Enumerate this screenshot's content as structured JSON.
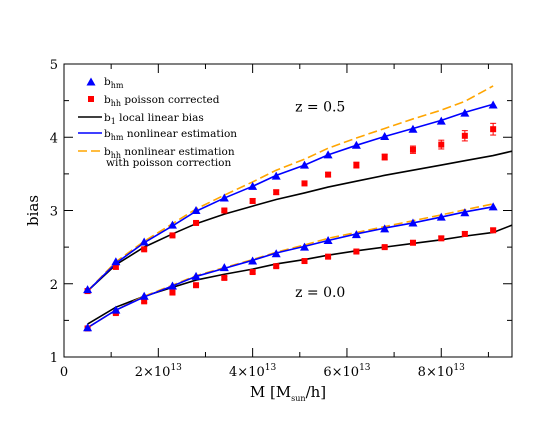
{
  "chart_data": {
    "type": "line",
    "title": "",
    "xlabel": "M [M_sun/h]",
    "ylabel": "bias",
    "xlim": [
      0,
      95000000000000.0
    ],
    "ylim": [
      1,
      5
    ],
    "grid": false,
    "legend_position": "top-left",
    "x_ticks": [
      {
        "value": 0,
        "base": "0",
        "exp": ""
      },
      {
        "value": 20000000000000.0,
        "base": "2×10",
        "exp": "13"
      },
      {
        "value": 40000000000000.0,
        "base": "4×10",
        "exp": "13"
      },
      {
        "value": 60000000000000.0,
        "base": "6×10",
        "exp": "13"
      },
      {
        "value": 80000000000000.0,
        "base": "8×10",
        "exp": "13"
      }
    ],
    "y_ticks": [
      {
        "value": 1,
        "label": "1"
      },
      {
        "value": 2,
        "label": "2"
      },
      {
        "value": 3,
        "label": "3"
      },
      {
        "value": 4,
        "label": "4"
      },
      {
        "value": 5,
        "label": "5"
      }
    ],
    "annotations": [
      {
        "text": "z = 0.5",
        "x": 49000000000000.0,
        "y": 4.35
      },
      {
        "text": "z = 0.0",
        "x": 49000000000000.0,
        "y": 1.82
      }
    ],
    "legend": [
      {
        "id": "bhm",
        "main": "b",
        "sub": "hm",
        "rest": "",
        "rest2": ""
      },
      {
        "id": "bhh",
        "main": "b",
        "sub": "hh",
        "rest": " poisson corrected",
        "rest2": ""
      },
      {
        "id": "b1",
        "main": "b",
        "sub": "1",
        "rest": " local linear bias",
        "rest2": ""
      },
      {
        "id": "bhm_nl",
        "main": "b",
        "sub": "hm",
        "rest": " nonlinear estimation",
        "rest2": ""
      },
      {
        "id": "bhh_nl",
        "main": "b",
        "sub": "hh",
        "rest": " nonlinear estimation",
        "rest2": "with poisson correction"
      }
    ],
    "colors": {
      "bhm": "#0000ff",
      "bhh": "#ff0000",
      "b1": "#000000",
      "bhm_nl": "#0000ff",
      "bhh_nl": "#ffa500"
    },
    "series_groups": [
      {
        "redshift": "z = 0.5",
        "x": [
          5000000000000.0,
          11000000000000.0,
          17000000000000.0,
          23000000000000.0,
          28000000000000.0,
          34000000000000.0,
          40000000000000.0,
          45000000000000.0,
          51000000000000.0,
          56000000000000.0,
          62000000000000.0,
          68000000000000.0,
          74000000000000.0,
          80000000000000.0,
          85000000000000.0,
          91000000000000.0
        ],
        "bhm": [
          1.92,
          2.3,
          2.57,
          2.8,
          3.0,
          3.17,
          3.33,
          3.47,
          3.62,
          3.76,
          3.89,
          4.01,
          4.11,
          4.22,
          4.33,
          4.44
        ],
        "bhm_err": [
          0.02,
          0.02,
          0.02,
          0.02,
          0.02,
          0.02,
          0.02,
          0.02,
          0.02,
          0.02,
          0.02,
          0.02,
          0.02,
          0.03,
          0.03,
          0.04
        ],
        "bhh": [
          1.9,
          2.23,
          2.47,
          2.66,
          2.83,
          3.0,
          3.13,
          3.25,
          3.37,
          3.49,
          3.62,
          3.73,
          3.83,
          3.9,
          4.02,
          4.11
        ],
        "bhh_err": [
          0.03,
          0.03,
          0.02,
          0.02,
          0.02,
          0.02,
          0.03,
          0.03,
          0.03,
          0.03,
          0.04,
          0.04,
          0.05,
          0.06,
          0.07,
          0.08
        ],
        "b1_x": [
          5000000000000.0,
          11000000000000.0,
          17000000000000.0,
          23000000000000.0,
          28000000000000.0,
          34000000000000.0,
          40000000000000.0,
          45000000000000.0,
          51000000000000.0,
          56000000000000.0,
          62000000000000.0,
          68000000000000.0,
          74000000000000.0,
          80000000000000.0,
          85000000000000.0,
          91000000000000.0,
          95000000000000.0
        ],
        "b1": [
          1.9,
          2.26,
          2.5,
          2.68,
          2.82,
          2.95,
          3.06,
          3.15,
          3.24,
          3.32,
          3.4,
          3.48,
          3.55,
          3.62,
          3.68,
          3.75,
          3.81
        ],
        "bhm_nl": [
          1.9,
          2.28,
          2.56,
          2.79,
          2.99,
          3.17,
          3.33,
          3.48,
          3.62,
          3.76,
          3.89,
          4.01,
          4.12,
          4.23,
          4.34,
          4.45
        ],
        "bhh_nl": [
          1.9,
          2.3,
          2.58,
          2.82,
          3.02,
          3.21,
          3.39,
          3.55,
          3.7,
          3.85,
          3.99,
          4.12,
          4.25,
          4.37,
          4.49,
          4.7
        ]
      },
      {
        "redshift": "z = 0.0",
        "x": [
          5000000000000.0,
          11000000000000.0,
          17000000000000.0,
          23000000000000.0,
          28000000000000.0,
          34000000000000.0,
          40000000000000.0,
          45000000000000.0,
          51000000000000.0,
          56000000000000.0,
          62000000000000.0,
          68000000000000.0,
          74000000000000.0,
          80000000000000.0,
          85000000000000.0,
          91000000000000.0
        ],
        "bhm": [
          1.4,
          1.64,
          1.83,
          1.97,
          2.1,
          2.22,
          2.31,
          2.41,
          2.5,
          2.59,
          2.67,
          2.75,
          2.83,
          2.91,
          2.97,
          3.05
        ],
        "bhm_err": [
          0.02,
          0.02,
          0.02,
          0.02,
          0.02,
          0.02,
          0.02,
          0.02,
          0.02,
          0.02,
          0.02,
          0.02,
          0.02,
          0.02,
          0.02,
          0.02
        ],
        "bhh": [
          1.39,
          1.6,
          1.76,
          1.88,
          1.98,
          2.08,
          2.16,
          2.24,
          2.31,
          2.37,
          2.44,
          2.5,
          2.56,
          2.62,
          2.68,
          2.73
        ],
        "bhh_err": [
          0.02,
          0.02,
          0.02,
          0.02,
          0.02,
          0.02,
          0.02,
          0.02,
          0.02,
          0.02,
          0.02,
          0.02,
          0.03,
          0.03,
          0.03,
          0.03
        ],
        "b1_x": [
          5000000000000.0,
          11000000000000.0,
          17000000000000.0,
          23000000000000.0,
          28000000000000.0,
          34000000000000.0,
          40000000000000.0,
          45000000000000.0,
          51000000000000.0,
          56000000000000.0,
          62000000000000.0,
          68000000000000.0,
          74000000000000.0,
          80000000000000.0,
          85000000000000.0,
          91000000000000.0,
          95000000000000.0
        ],
        "b1": [
          1.45,
          1.68,
          1.83,
          1.95,
          2.05,
          2.13,
          2.2,
          2.27,
          2.33,
          2.39,
          2.45,
          2.5,
          2.55,
          2.6,
          2.65,
          2.7,
          2.8
        ],
        "bhm_nl": [
          1.4,
          1.64,
          1.82,
          1.97,
          2.1,
          2.21,
          2.32,
          2.42,
          2.51,
          2.59,
          2.68,
          2.76,
          2.83,
          2.91,
          2.98,
          3.05
        ],
        "bhh_nl": [
          1.4,
          1.64,
          1.83,
          1.98,
          2.11,
          2.22,
          2.33,
          2.43,
          2.53,
          2.62,
          2.7,
          2.78,
          2.86,
          2.94,
          3.01,
          3.09
        ]
      }
    ]
  }
}
